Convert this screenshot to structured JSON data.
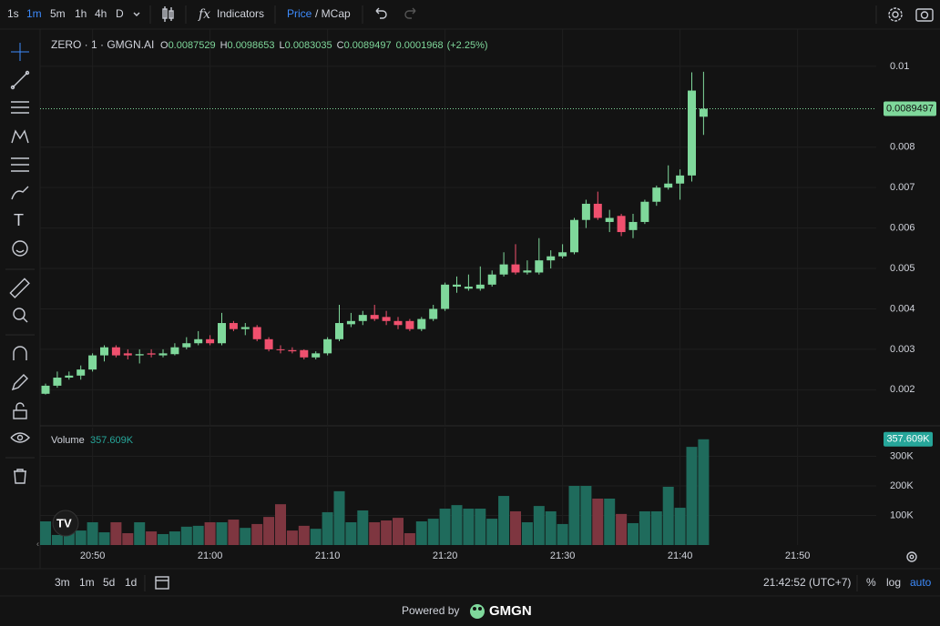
{
  "toolbar": {
    "intervals": [
      "1s",
      "1m",
      "5m",
      "1h",
      "4h",
      "D"
    ],
    "indicators": "Indicators",
    "price": "Price",
    "mcap": "/ MCap"
  },
  "bottom": {
    "ranges": [
      "3m",
      "1m",
      "5d",
      "1d"
    ],
    "clock": "21:42:52 (UTC+7)",
    "percent": "%",
    "log": "log",
    "auto": "auto"
  },
  "footer": {
    "powered": "Powered by",
    "brand": "GMGN"
  },
  "chart_data": {
    "type": "candlestick",
    "title": "ZERO · 1 · GMGN.AI",
    "x": [
      "20:46",
      "20:47",
      "20:48",
      "20:49",
      "20:50",
      "20:51",
      "20:52",
      "20:53",
      "20:54",
      "20:55",
      "20:56",
      "20:57",
      "20:58",
      "20:59",
      "21:00",
      "21:01",
      "21:02",
      "21:03",
      "21:04",
      "21:05",
      "21:06",
      "21:07",
      "21:08",
      "21:09",
      "21:10",
      "21:11",
      "21:12",
      "21:13",
      "21:14",
      "21:15",
      "21:16",
      "21:17",
      "21:18",
      "21:19",
      "21:20",
      "21:21",
      "21:22",
      "21:23",
      "21:24",
      "21:25",
      "21:26",
      "21:27",
      "21:28",
      "21:29",
      "21:30",
      "21:31",
      "21:32",
      "21:33",
      "21:34",
      "21:35",
      "21:36",
      "21:37",
      "21:38",
      "21:39",
      "21:40",
      "21:41",
      "21:42"
    ],
    "open": [
      0.0019,
      0.0021,
      0.0023,
      0.00235,
      0.0025,
      0.00285,
      0.00305,
      0.0029,
      0.00285,
      0.0029,
      0.00285,
      0.00288,
      0.00305,
      0.00315,
      0.00325,
      0.00315,
      0.00365,
      0.0035,
      0.00355,
      0.00325,
      0.003,
      0.00298,
      0.00298,
      0.0028,
      0.0029,
      0.00325,
      0.00362,
      0.0037,
      0.00385,
      0.0038,
      0.0037,
      0.0037,
      0.0035,
      0.00375,
      0.004,
      0.00455,
      0.0045,
      0.0045,
      0.0046,
      0.00485,
      0.0051,
      0.0049,
      0.0049,
      0.0052,
      0.0053,
      0.0054,
      0.0062,
      0.0066,
      0.00615,
      0.0063,
      0.00595,
      0.00615,
      0.00665,
      0.007,
      0.0071,
      0.0073,
      0.0087529
    ],
    "high": [
      0.00215,
      0.00245,
      0.00245,
      0.0026,
      0.0029,
      0.0031,
      0.0031,
      0.003,
      0.003,
      0.003,
      0.003,
      0.00315,
      0.0033,
      0.00345,
      0.00335,
      0.0039,
      0.0037,
      0.00365,
      0.0036,
      0.0033,
      0.0031,
      0.00305,
      0.003,
      0.00295,
      0.0033,
      0.0041,
      0.0039,
      0.00395,
      0.0041,
      0.00395,
      0.0038,
      0.00375,
      0.0038,
      0.0041,
      0.00465,
      0.0048,
      0.00485,
      0.00505,
      0.00495,
      0.0054,
      0.0056,
      0.0052,
      0.00575,
      0.00545,
      0.0056,
      0.00625,
      0.0067,
      0.0069,
      0.00645,
      0.00635,
      0.00635,
      0.0067,
      0.00705,
      0.00755,
      0.00745,
      0.00985,
      0.0098653
    ],
    "low": [
      0.00188,
      0.00205,
      0.00225,
      0.00225,
      0.00245,
      0.0027,
      0.0028,
      0.00275,
      0.00265,
      0.0028,
      0.0028,
      0.00285,
      0.003,
      0.0031,
      0.0031,
      0.0031,
      0.00345,
      0.00335,
      0.0032,
      0.00295,
      0.0029,
      0.0029,
      0.00275,
      0.00275,
      0.00285,
      0.0032,
      0.00355,
      0.0036,
      0.0037,
      0.0036,
      0.0035,
      0.00345,
      0.00345,
      0.0037,
      0.00395,
      0.0044,
      0.00445,
      0.00445,
      0.00455,
      0.0048,
      0.00485,
      0.00485,
      0.00485,
      0.005,
      0.00525,
      0.00535,
      0.006,
      0.0062,
      0.0059,
      0.0058,
      0.00575,
      0.0061,
      0.00655,
      0.00695,
      0.0067,
      0.00715,
      0.0083035
    ],
    "close": [
      0.0021,
      0.0023,
      0.00235,
      0.0025,
      0.00285,
      0.00305,
      0.00285,
      0.00285,
      0.00288,
      0.00287,
      0.0029,
      0.00305,
      0.00315,
      0.00325,
      0.00315,
      0.00365,
      0.0035,
      0.00355,
      0.00325,
      0.003,
      0.00298,
      0.00295,
      0.0028,
      0.0029,
      0.00325,
      0.00365,
      0.0037,
      0.00385,
      0.00375,
      0.0037,
      0.0036,
      0.0035,
      0.00375,
      0.004,
      0.0046,
      0.0046,
      0.00455,
      0.0046,
      0.00485,
      0.0051,
      0.0049,
      0.00495,
      0.0052,
      0.0053,
      0.0054,
      0.0062,
      0.0066,
      0.00625,
      0.00625,
      0.0059,
      0.00615,
      0.00665,
      0.007,
      0.0071,
      0.0073,
      0.0094,
      0.0089497
    ],
    "colors": {
      "up": "#7fd89b",
      "down": "#f0506e",
      "volume_up": "#1f6b5c",
      "volume_down": "#7e3640",
      "last_price": "#7fd89b",
      "last_volume": "#26a69a"
    },
    "ylim": [
      0.00113,
      0.01074
    ],
    "yticks": [
      0.002,
      0.003,
      0.004,
      0.005,
      0.006,
      0.007,
      0.008,
      0.01
    ],
    "xticks": [
      "20:50",
      "21:00",
      "21:10",
      "21:20",
      "21:30",
      "21:40",
      "21:50"
    ],
    "grid": true,
    "ohlc_prefixes": [
      "O",
      "H",
      "L",
      "C"
    ],
    "change": 0.0001968,
    "change_label": "(+2.25%)",
    "volume": {
      "name": "Volume",
      "values": [
        80000,
        34000,
        43000,
        49000,
        77000,
        43000,
        77000,
        40000,
        77000,
        46000,
        37000,
        46000,
        62000,
        65000,
        77000,
        77000,
        86000,
        58000,
        71000,
        95000,
        138000,
        49000,
        65000,
        55000,
        111000,
        182000,
        77000,
        117000,
        77000,
        83000,
        92000,
        40000,
        80000,
        89000,
        123000,
        135000,
        123000,
        123000,
        89000,
        166000,
        114000,
        77000,
        132000,
        114000,
        71000,
        200000,
        200000,
        157000,
        157000,
        105000,
        74000,
        114000,
        114000,
        197000,
        126000,
        332000,
        357609
      ],
      "last_label": "357.609K",
      "ylim": [
        0,
        397000
      ],
      "yticks": [
        {
          "value": 100000,
          "label": "100K"
        },
        {
          "value": 200000,
          "label": "200K"
        },
        {
          "value": 300000,
          "label": "300K"
        }
      ]
    }
  }
}
